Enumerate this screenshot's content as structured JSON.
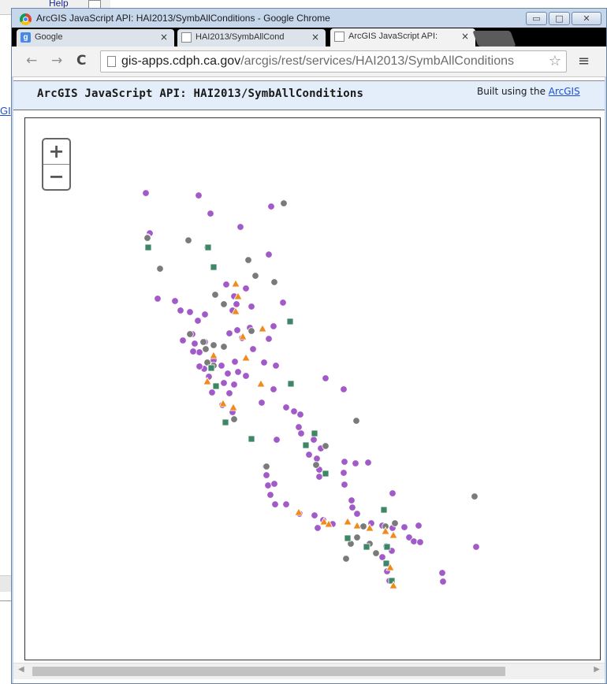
{
  "background": {
    "help_label": "Help",
    "link_fragment": "GI"
  },
  "window": {
    "title": "ArcGIS JavaScript API: HAI2013/SymbAllConditions - Google Chrome",
    "minimize": "▭",
    "maximize": "□",
    "close": "✕"
  },
  "tabs": [
    {
      "label": "Google",
      "icon": "google-icon",
      "close": "×"
    },
    {
      "label": "HAI2013/SymbAllCond",
      "icon": "page-icon",
      "close": "×"
    },
    {
      "label": "ArcGIS JavaScript API:",
      "icon": "page-icon",
      "close": "×"
    }
  ],
  "toolbar": {
    "back": "←",
    "forward": "→",
    "reload": "C",
    "url_host": "gis-apps.cdph.ca.gov",
    "url_path": "/arcgis/rest/services/HAI2013/SymbAllConditions",
    "star": "☆",
    "menu": "≡"
  },
  "page": {
    "title": "ArcGIS JavaScript API: HAI2013/SymbAllConditions",
    "built_prefix": "Built using the ",
    "built_link": "ArcGIS"
  },
  "map": {
    "zoom_in": "+",
    "zoom_out": "−",
    "colors": {
      "purple": "#a259c9",
      "gray": "#7a7a7a",
      "green": "#3d8766",
      "orange": "#f08a1c"
    }
  },
  "scrollbar": {
    "left_arrow": "◀",
    "right_arrow": "▶"
  }
}
